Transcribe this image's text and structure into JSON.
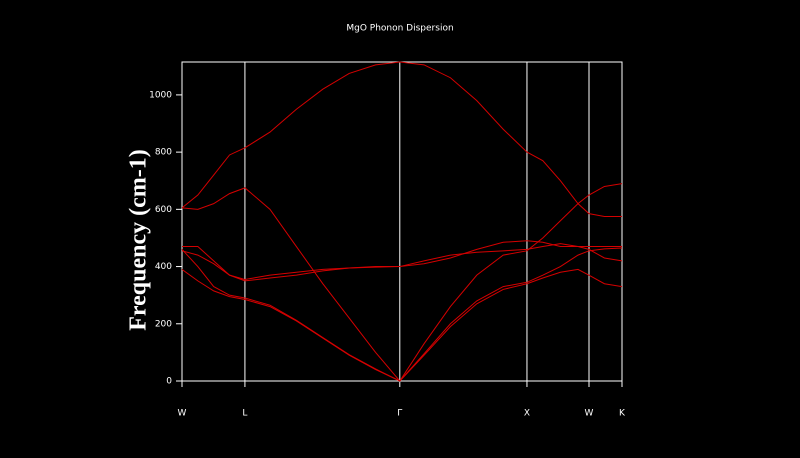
{
  "chart_data": {
    "type": "line",
    "title": "MgO Phonon Dispersion",
    "y_label": "Frequency (cm-1)",
    "x": [
      0,
      0.036,
      0.072,
      0.108,
      0.143,
      0.2,
      0.26,
      0.32,
      0.38,
      0.44,
      0.495,
      0.55,
      0.61,
      0.67,
      0.73,
      0.784,
      0.82,
      0.86,
      0.9,
      0.925,
      0.96,
      1
    ],
    "xlim": [
      0,
      1
    ],
    "xticks": [
      {
        "value": 0,
        "label": "W"
      },
      {
        "value": 0.143,
        "label": "L"
      },
      {
        "value": 0.495,
        "label": "Γ"
      },
      {
        "value": 0.784,
        "label": "X"
      },
      {
        "value": 0.925,
        "label": "W"
      },
      {
        "value": 1,
        "label": "K"
      }
    ],
    "ylim": [
      0,
      1115
    ],
    "yticks": [
      0,
      200,
      400,
      600,
      800,
      1000
    ],
    "xgrid": true,
    "series": [
      {
        "color": "#d40000",
        "values": [
          605,
          650,
          720,
          790,
          815,
          870,
          950,
          1020,
          1075,
          1105,
          1115,
          1105,
          1060,
          980,
          880,
          800,
          770,
          700,
          620,
          585,
          575,
          575
        ]
      },
      {
        "color": "#d40000",
        "values": [
          605,
          600,
          620,
          655,
          675,
          600,
          470,
          340,
          220,
          100,
          0,
          130,
          260,
          370,
          440,
          455,
          500,
          560,
          620,
          650,
          680,
          690
        ]
      },
      {
        "color": "#d40000",
        "values": [
          470,
          470,
          420,
          370,
          350,
          360,
          370,
          385,
          395,
          400,
          400,
          410,
          430,
          460,
          485,
          490,
          485,
          470,
          470,
          470,
          470,
          470
        ]
      },
      {
        "color": "#d40000",
        "values": [
          455,
          440,
          410,
          370,
          355,
          370,
          380,
          390,
          395,
          398,
          400,
          420,
          440,
          450,
          455,
          460,
          470,
          480,
          470,
          460,
          430,
          420
        ]
      },
      {
        "color": "#d40000",
        "values": [
          390,
          350,
          315,
          295,
          285,
          260,
          210,
          150,
          90,
          40,
          0,
          90,
          190,
          270,
          320,
          340,
          360,
          380,
          390,
          370,
          340,
          330
        ]
      },
      {
        "color": "#d40000",
        "values": [
          460,
          400,
          330,
          300,
          290,
          265,
          212,
          152,
          92,
          42,
          0,
          95,
          200,
          280,
          330,
          345,
          370,
          400,
          440,
          455,
          462,
          465
        ]
      }
    ]
  }
}
